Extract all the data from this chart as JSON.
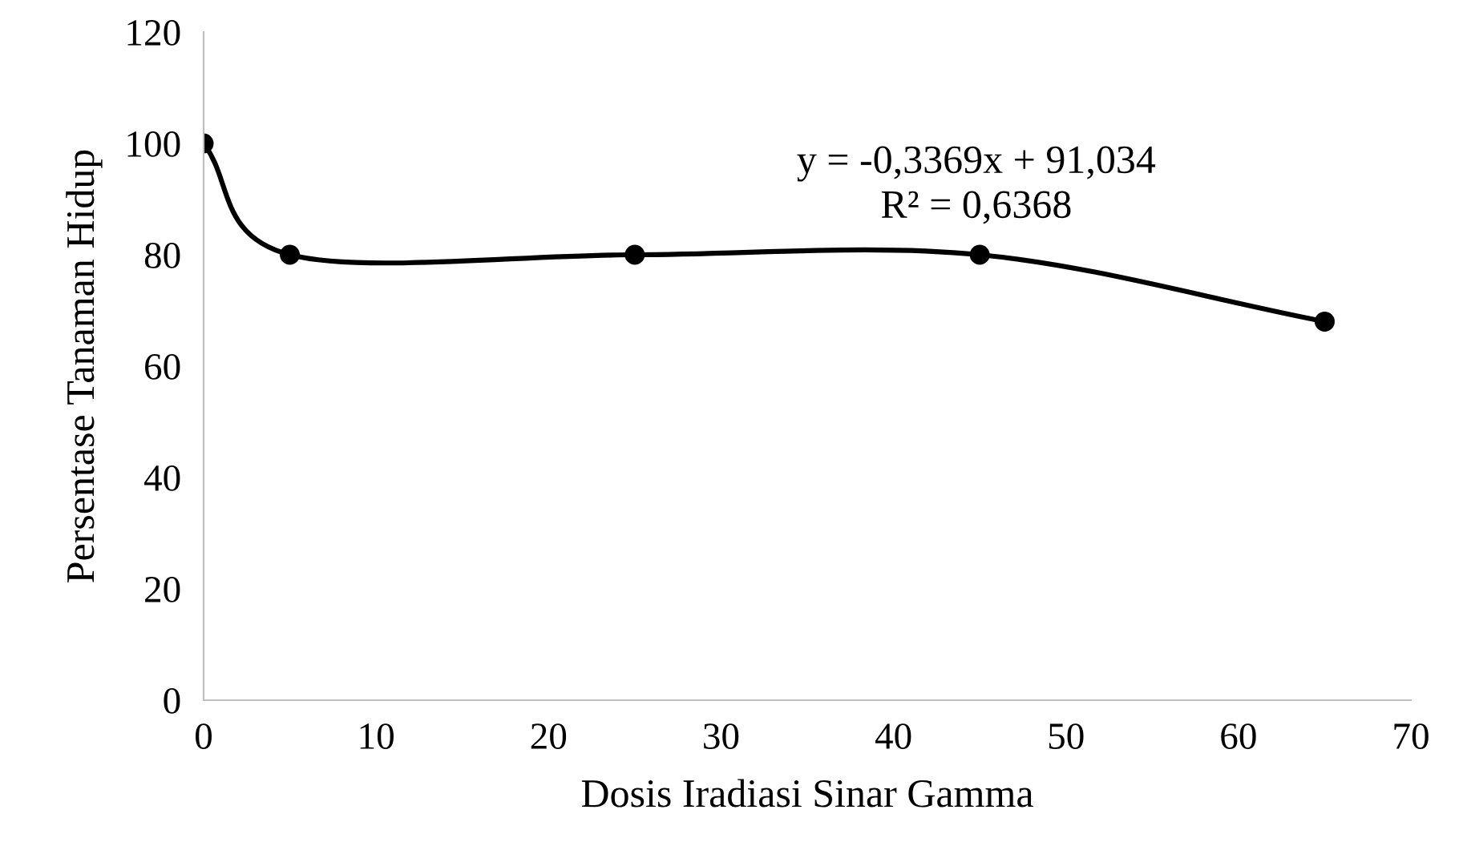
{
  "chart_data": {
    "type": "line",
    "xlabel": "Dosis Iradiasi Sinar Gamma",
    "ylabel": "Persentase Tanaman Hidup",
    "x": [
      0,
      5,
      25,
      45,
      65
    ],
    "series": [
      {
        "color": "#000000",
        "values": [
          100,
          80,
          80,
          80,
          68
        ]
      }
    ],
    "xlim": [
      0,
      70
    ],
    "xticks": [
      0,
      10,
      20,
      30,
      40,
      50,
      60,
      70
    ],
    "ylim": [
      0,
      120
    ],
    "yticks": [
      0,
      20,
      40,
      60,
      80,
      100,
      120
    ],
    "grid": false,
    "marker": "circle",
    "line_style": "solid",
    "annotations": [
      "y = -0,3369x + 91,034\nR² = 0,6368"
    ]
  }
}
